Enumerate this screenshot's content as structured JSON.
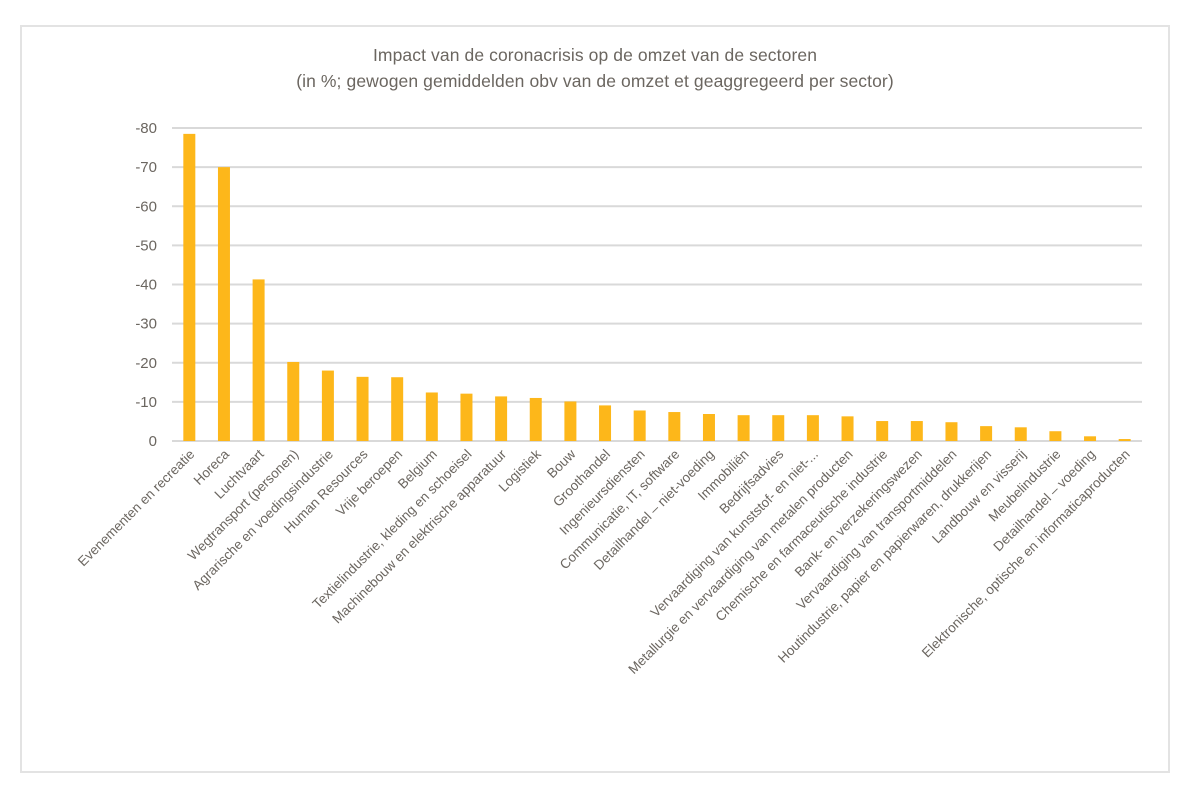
{
  "chart_data": {
    "type": "bar",
    "title": "Impact van de coronacrisis op de omzet van de sectoren",
    "subtitle": "(in %; gewogen gemiddelden obv van de omzet et geaggregeerd per sector)",
    "xlabel": "",
    "ylabel": "",
    "ylim": [
      0,
      -80
    ],
    "y_inverted": true,
    "yticks": [
      0,
      -10,
      -20,
      -30,
      -40,
      -50,
      -60,
      -70,
      -80
    ],
    "grid": true,
    "legend": "none",
    "bar_color": "#FDB71A",
    "categories": [
      "Evenementen en recreatie",
      "Horeca",
      "Luchtvaart",
      "Wegtransport (personen)",
      "Agrarische en voedingsindustrie",
      "Human Resources",
      "Vrije beroepen",
      "Belgium",
      "Textielindustrie, kleding en schoeisel",
      "Machinebouw en elektrische apparatuur",
      "Logistiek",
      "Bouw",
      "Groothandel",
      "Ingenieursdiensten",
      "Communicatie, IT, software",
      "Detailhandel – niet-voeding",
      "Immobiliën",
      "Bedrijfsadvies",
      "Vervaardiging van kunststof- en niet-...",
      "Metallurgie en vervaardiging van metalen producten",
      "Chemische en farmaceutische industrie",
      "Bank- en verzekeringswezen",
      "Vervaardiging van transportmiddelen",
      "Houtindustrie, papier en papierwaren, drukkerijen",
      "Landbouw en visserij",
      "Meubelindustrie",
      "Detailhandel – voeding",
      "Elektronische, optische en informaticaproducten"
    ],
    "values": [
      -78.5,
      -70.0,
      -41.3,
      -20.2,
      -18.0,
      -16.4,
      -16.3,
      -12.4,
      -12.1,
      -11.4,
      -11.0,
      -10.1,
      -9.1,
      -7.8,
      -7.4,
      -6.9,
      -6.6,
      -6.6,
      -6.6,
      -6.3,
      -5.1,
      -5.1,
      -4.8,
      -3.8,
      -3.5,
      -2.5,
      -1.2,
      -0.5
    ]
  }
}
